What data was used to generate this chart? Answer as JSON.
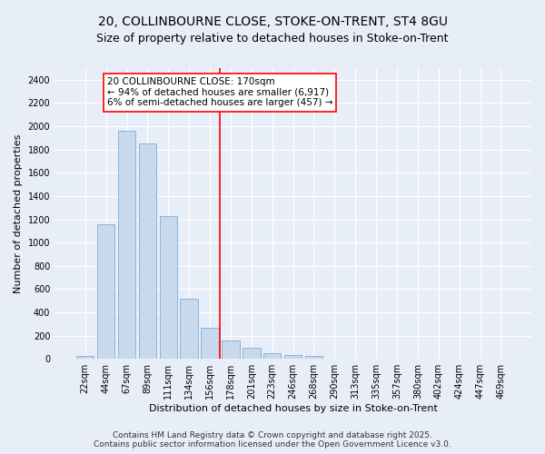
{
  "title": "20, COLLINBOURNE CLOSE, STOKE-ON-TRENT, ST4 8GU",
  "subtitle": "Size of property relative to detached houses in Stoke-on-Trent",
  "xlabel": "Distribution of detached houses by size in Stoke-on-Trent",
  "ylabel": "Number of detached properties",
  "categories": [
    "22sqm",
    "44sqm",
    "67sqm",
    "89sqm",
    "111sqm",
    "134sqm",
    "156sqm",
    "178sqm",
    "201sqm",
    "223sqm",
    "246sqm",
    "268sqm",
    "290sqm",
    "313sqm",
    "335sqm",
    "357sqm",
    "380sqm",
    "402sqm",
    "424sqm",
    "447sqm",
    "469sqm"
  ],
  "values": [
    25,
    1160,
    1960,
    1850,
    1230,
    515,
    270,
    160,
    95,
    45,
    32,
    28,
    5,
    2,
    1,
    1,
    0,
    0,
    0,
    0,
    0
  ],
  "bar_color": "#c9d9ed",
  "bar_edge_color": "#7aaed6",
  "vline_color": "red",
  "annotation_title": "20 COLLINBOURNE CLOSE: 170sqm",
  "annotation_line1": "← 94% of detached houses are smaller (6,917)",
  "annotation_line2": "6% of semi-detached houses are larger (457) →",
  "ylim": [
    0,
    2500
  ],
  "yticks": [
    0,
    200,
    400,
    600,
    800,
    1000,
    1200,
    1400,
    1600,
    1800,
    2000,
    2200,
    2400
  ],
  "footer_line1": "Contains HM Land Registry data © Crown copyright and database right 2025.",
  "footer_line2": "Contains public sector information licensed under the Open Government Licence v3.0.",
  "bg_color": "#e8eef8",
  "plot_bg_color": "#e8eef8",
  "grid_color": "white",
  "title_fontsize": 10,
  "subtitle_fontsize": 9,
  "axis_label_fontsize": 8,
  "tick_fontsize": 7,
  "footer_fontsize": 6.5,
  "annotation_fontsize": 7.5
}
